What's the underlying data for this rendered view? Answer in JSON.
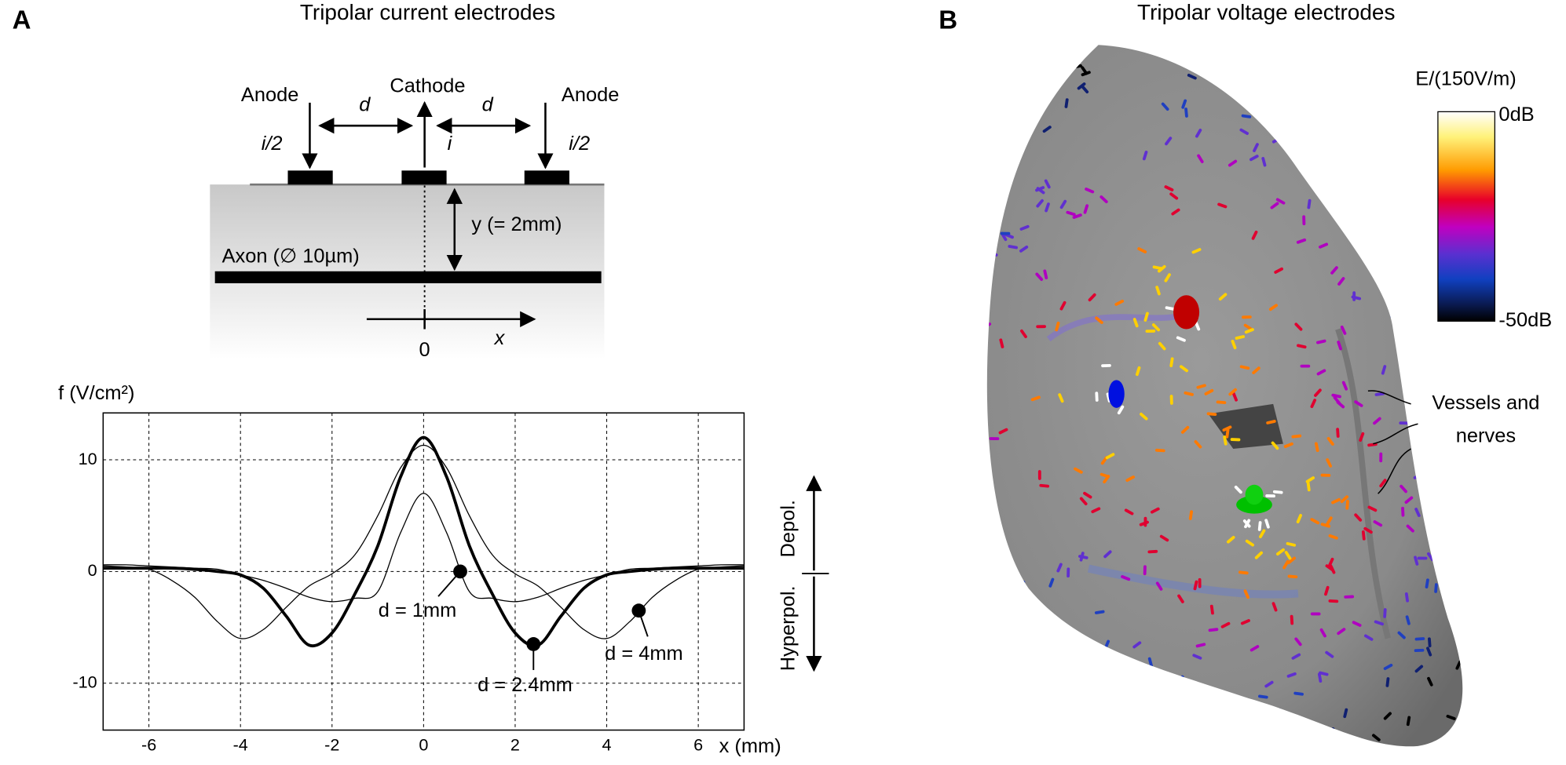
{
  "panel_a": {
    "label": "A",
    "title": "Tripolar current electrodes",
    "diagram": {
      "anode_left": "Anode",
      "cathode": "Cathode",
      "anode_right": "Anode",
      "d_left": "d",
      "d_right": "d",
      "current_left": "i/2",
      "current_center": "i",
      "current_right": "i/2",
      "depth": "y (= 2mm)",
      "axon": "Axon (∅ 10µm)",
      "origin": "0",
      "x_axis": "x"
    }
  },
  "chart_data": {
    "type": "line",
    "xlabel": "x (mm)",
    "ylabel": "f (V/cm²)",
    "depol_label": "Depol.",
    "hyperpol_label": "Hyperpol.",
    "x": [
      -7,
      -6.5,
      -6,
      -5.5,
      -5,
      -4.5,
      -4,
      -3.5,
      -3,
      -2.5,
      -2,
      -1.5,
      -1,
      -0.5,
      0,
      0.5,
      1,
      1.5,
      2,
      2.5,
      3,
      3.5,
      4,
      4.5,
      5,
      5.5,
      6,
      6.5,
      7
    ],
    "series": [
      {
        "name": "d = 1mm",
        "color": "#000000",
        "stroke_width": 1,
        "annotation_x": 0.8,
        "annotation_y": 0,
        "values": [
          0.6,
          0.6,
          0.5,
          0.4,
          0.3,
          0.2,
          -0.3,
          -0.8,
          -1.5,
          -2.3,
          -2.7,
          -2.4,
          -1.8,
          3.5,
          7,
          3.5,
          -1.8,
          -2.4,
          -2.7,
          -2.3,
          -1.5,
          -0.8,
          -0.3,
          0.2,
          0.3,
          0.4,
          0.5,
          0.6,
          0.6
        ]
      },
      {
        "name": "d = 2.4mm",
        "color": "#000000",
        "stroke_width": 3,
        "annotation_x": 2.4,
        "annotation_y": -6.5,
        "values": [
          0.3,
          0.3,
          0.3,
          0.3,
          0.2,
          0,
          -0.3,
          -1.5,
          -4,
          -6.6,
          -5.5,
          -2,
          2.3,
          8.5,
          12,
          8.5,
          2.3,
          -2,
          -5.5,
          -6.6,
          -4,
          -1.5,
          -0.3,
          0,
          0.2,
          0.3,
          0.3,
          0.3,
          0.3
        ]
      },
      {
        "name": "d = 4mm",
        "color": "#000000",
        "stroke_width": 1,
        "annotation_x": 4.7,
        "annotation_y": -3.5,
        "values": [
          0.5,
          0.4,
          0.2,
          -0.8,
          -2.3,
          -4.5,
          -6,
          -5.2,
          -3.2,
          -1.3,
          -0.2,
          1.5,
          5,
          9.3,
          11.3,
          9.3,
          5,
          1.5,
          -0.2,
          -1.3,
          -3.2,
          -5.2,
          -6,
          -4.5,
          -2.3,
          -0.8,
          0.2,
          0.4,
          0.5
        ]
      }
    ],
    "xlim": [
      -7,
      7
    ],
    "ylim": [
      -14.2,
      14.2
    ],
    "xticks": [
      -6,
      -4,
      -2,
      0,
      2,
      4,
      6
    ],
    "yticks": [
      -10,
      0,
      10
    ],
    "grid": true
  },
  "panel_b": {
    "label": "B",
    "title": "Tripolar voltage electrodes",
    "colorbar_title": "E/(150V/m)",
    "colorbar_top": "0dB",
    "colorbar_bottom": "-50dB",
    "vessels_label": [
      "Vessels and",
      "nerves"
    ]
  }
}
